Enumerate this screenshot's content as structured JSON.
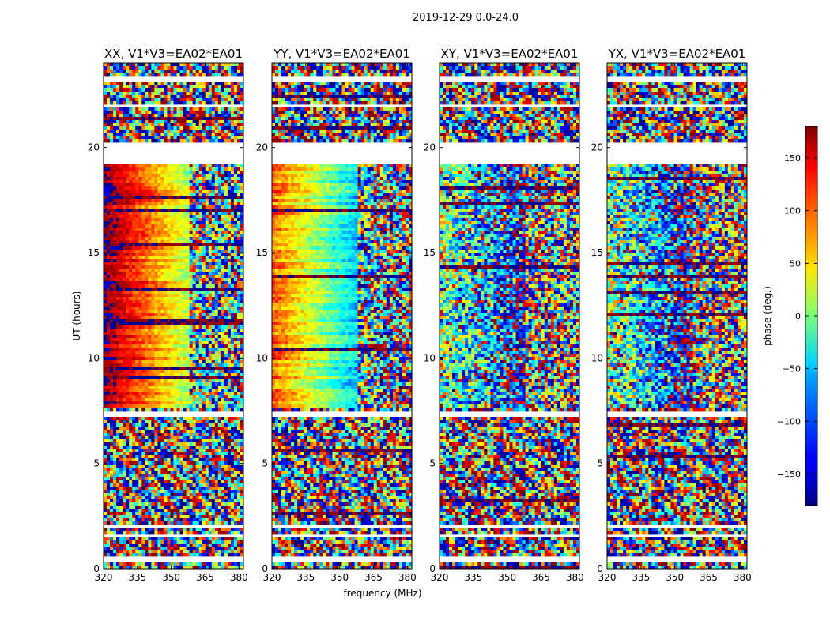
{
  "figure": {
    "suptitle": "2019-12-29 0.0-24.0"
  },
  "chart_data": {
    "type": "heatmap",
    "description_of_content": "dynamic phase spectra per polarization",
    "xlabel": "frequency (MHz)",
    "ylabel": "UT (hours)",
    "xlim": [
      320,
      382
    ],
    "ylim": [
      0,
      24
    ],
    "xticks": [
      320,
      335,
      350,
      365,
      380
    ],
    "yticks": [
      0,
      5,
      10,
      15,
      20
    ],
    "panels": [
      {
        "title": "XX, V1*V3=EA02*EA01",
        "pol": "XX"
      },
      {
        "title": "YY, V1*V3=EA02*EA01",
        "pol": "YY"
      },
      {
        "title": "XY, V1*V3=EA02*EA01",
        "pol": "XY"
      },
      {
        "title": "YX, V1*V3=EA02*EA01",
        "pol": "YX"
      }
    ],
    "flagged_ut_ranges": [
      [
        0.35,
        0.55
      ],
      [
        1.55,
        1.68
      ],
      [
        2.0,
        2.12
      ],
      [
        7.2,
        7.55
      ],
      [
        19.2,
        20.3
      ],
      [
        21.9,
        22.05
      ],
      [
        23.15,
        23.35
      ]
    ],
    "colorbar": {
      "label": "phase (deg.)",
      "colormap": "jet",
      "range": [
        -180,
        180
      ],
      "ticks": [
        150,
        100,
        50,
        0,
        -50,
        -100,
        -150
      ],
      "tick_labels": [
        "150",
        "100",
        "50",
        "0",
        "−50",
        "−100",
        "−150"
      ]
    }
  }
}
